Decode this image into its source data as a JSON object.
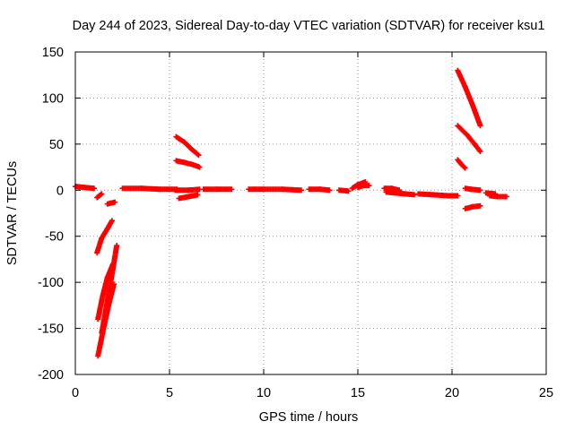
{
  "chart_data": {
    "type": "scatter",
    "title": "Day 244 of 2023, Sidereal Day-to-day VTEC variation (SDTVAR) for receiver ksu1",
    "xlabel": "GPS time / hours",
    "ylabel": "SDTVAR / TECUs",
    "xlim": [
      0,
      25
    ],
    "ylim": [
      -200,
      150
    ],
    "xticks": [
      "0",
      "5",
      "10",
      "15",
      "20",
      "25"
    ],
    "yticks": [
      "-200",
      "-150",
      "-100",
      "-50",
      "0",
      "50",
      "100",
      "150"
    ],
    "grid": true,
    "marker": "plus",
    "color": "#ff0000",
    "segments": [
      {
        "x": [
          0.0,
          0.5,
          1.0
        ],
        "y": [
          4,
          3,
          2
        ]
      },
      {
        "x": [
          1.15,
          1.4
        ],
        "y": [
          -8,
          -4
        ]
      },
      {
        "x": [
          1.7,
          2.1
        ],
        "y": [
          -15,
          -13
        ]
      },
      {
        "x": [
          1.15,
          1.4,
          1.7,
          1.95
        ],
        "y": [
          -68,
          -52,
          -42,
          -33
        ]
      },
      {
        "x": [
          1.2,
          1.45,
          1.7,
          2.0
        ],
        "y": [
          -140,
          -115,
          -95,
          -80
        ]
      },
      {
        "x": [
          1.2,
          1.5,
          1.8,
          2.05
        ],
        "y": [
          -180,
          -150,
          -122,
          -102
        ]
      },
      {
        "x": [
          1.4,
          1.7,
          2.0,
          2.2
        ],
        "y": [
          -155,
          -120,
          -85,
          -60
        ]
      },
      {
        "x": [
          2.5,
          3.5,
          4.5,
          5.4
        ],
        "y": [
          2,
          2,
          1,
          1
        ]
      },
      {
        "x": [
          5.5,
          6.0,
          6.5
        ],
        "y": [
          -9,
          -7,
          -5
        ]
      },
      {
        "x": [
          5.35,
          5.8,
          6.2,
          6.55
        ],
        "y": [
          58,
          52,
          44,
          38
        ]
      },
      {
        "x": [
          5.35,
          5.8,
          6.2,
          6.6
        ],
        "y": [
          32,
          30,
          28,
          25
        ]
      },
      {
        "x": [
          5.3,
          6.0,
          6.6
        ],
        "y": [
          0,
          0,
          1
        ]
      },
      {
        "x": [
          6.8,
          7.5,
          8.3
        ],
        "y": [
          1,
          1,
          1
        ]
      },
      {
        "x": [
          9.2,
          10.0,
          11.0,
          12.0
        ],
        "y": [
          1,
          1,
          1,
          0
        ]
      },
      {
        "x": [
          12.4,
          13.0,
          13.5
        ],
        "y": [
          1,
          1,
          0
        ]
      },
      {
        "x": [
          14.0,
          14.5
        ],
        "y": [
          0,
          -1
        ]
      },
      {
        "x": [
          14.7,
          15.0,
          15.4
        ],
        "y": [
          2,
          6,
          9
        ]
      },
      {
        "x": [
          15.0,
          15.3,
          15.6
        ],
        "y": [
          3,
          5,
          5
        ]
      },
      {
        "x": [
          16.4,
          16.8,
          17.2
        ],
        "y": [
          2,
          2,
          0
        ]
      },
      {
        "x": [
          16.5,
          17.0,
          17.5,
          18.0
        ],
        "y": [
          -2,
          -3,
          -4,
          -5
        ]
      },
      {
        "x": [
          18.2,
          19.0,
          19.8,
          20.3
        ],
        "y": [
          -4,
          -5,
          -6,
          -6
        ]
      },
      {
        "x": [
          20.3,
          20.7,
          21.1,
          21.5
        ],
        "y": [
          130,
          112,
          92,
          70
        ]
      },
      {
        "x": [
          20.3,
          20.8,
          21.2,
          21.5
        ],
        "y": [
          70,
          60,
          50,
          42
        ]
      },
      {
        "x": [
          20.3,
          20.5,
          20.7
        ],
        "y": [
          33,
          28,
          24
        ]
      },
      {
        "x": [
          20.7,
          21.0,
          21.5
        ],
        "y": [
          2,
          1,
          0
        ]
      },
      {
        "x": [
          20.7,
          21.1,
          21.5
        ],
        "y": [
          -20,
          -18,
          -17
        ]
      },
      {
        "x": [
          21.8,
          22.3
        ],
        "y": [
          -3,
          -4
        ]
      },
      {
        "x": [
          22.0,
          22.4,
          22.9
        ],
        "y": [
          -6,
          -7,
          -7
        ]
      }
    ]
  }
}
